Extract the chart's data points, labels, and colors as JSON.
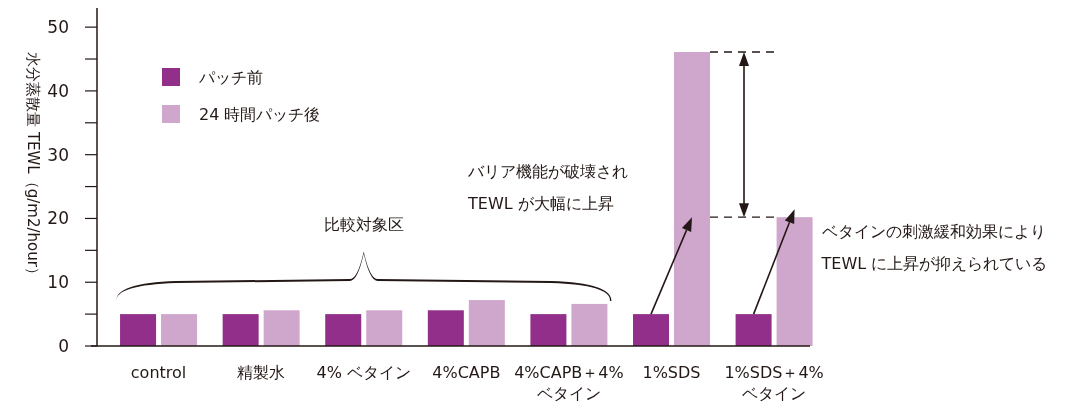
{
  "chart_data": {
    "type": "bar",
    "categories": [
      "control",
      "精製水",
      "4% ベタイン",
      "4%CAPB",
      "4%CAPB＋4% ベタイン",
      "1%SDS",
      "1%SDS＋4% ベタイン"
    ],
    "series": [
      {
        "name": "パッチ前",
        "color": "#912f8b",
        "values": [
          5,
          5,
          5,
          5.6,
          5,
          5,
          5
        ]
      },
      {
        "name": "24 時間パッチ後",
        "color": "#cfa6cc",
        "values": [
          5,
          5.6,
          5.6,
          7.2,
          6.6,
          46.1,
          20.2
        ]
      }
    ],
    "ylabel": "水分蒸散量 TEWL（g/m2/hour）",
    "ylim": [
      0,
      53
    ],
    "yticks": [
      0,
      {
        "value": 5,
        "label": null
      },
      10,
      {
        "value": 15,
        "label": null
      },
      20,
      {
        "value": 25,
        "label": null
      },
      30,
      {
        "value": 35,
        "label": null
      },
      40,
      {
        "value": 45,
        "label": null
      },
      50
    ],
    "legend": "top left",
    "annotations": [
      "比較対象区",
      "バリア機能が破壊され\nTEWL が大幅に上昇",
      "ベタインの刺激緩和効果により\nTEWL に上昇が抑えられている"
    ]
  }
}
